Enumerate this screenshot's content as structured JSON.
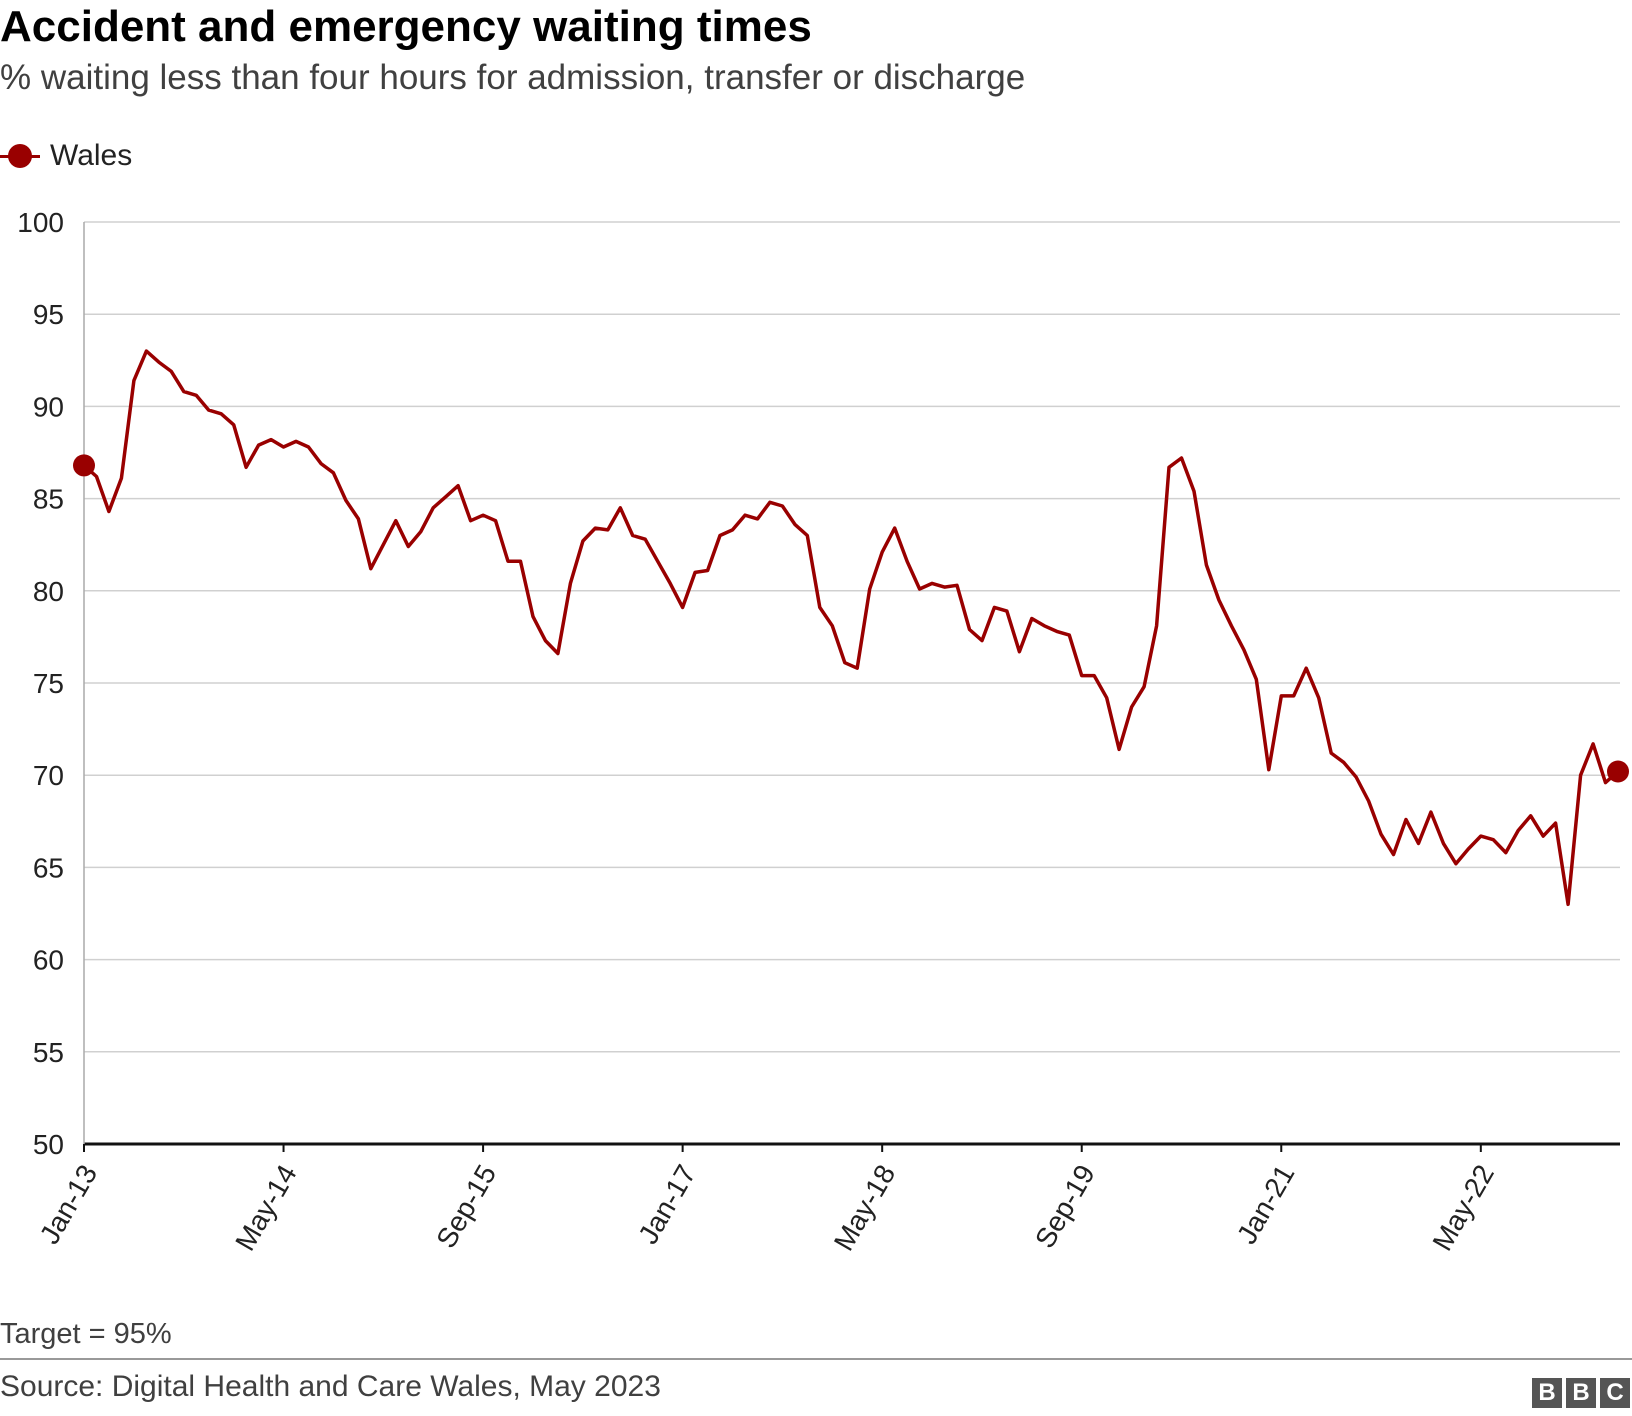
{
  "title": "Accident and emergency waiting times",
  "subtitle": "% waiting less than four hours for admission, transfer or discharge",
  "legend": {
    "label": "Wales",
    "color": "#990000"
  },
  "note": "Target = 95%",
  "source": "Source: Digital Health and Care Wales, May 2023",
  "logo": {
    "letters": [
      "B",
      "B",
      "C"
    ]
  },
  "chart_data": {
    "type": "line",
    "title": "Accident and emergency waiting times",
    "ylabel": "% waiting less than four hours",
    "ylim": [
      50,
      100
    ],
    "yticks": [
      "100",
      "95",
      "90",
      "85",
      "80",
      "75",
      "70",
      "65",
      "60",
      "55",
      "50"
    ],
    "xticks": [
      {
        "label": "Jan-13",
        "index": 0
      },
      {
        "label": "May-14",
        "index": 16
      },
      {
        "label": "Sep-15",
        "index": 32
      },
      {
        "label": "Jan-17",
        "index": 48
      },
      {
        "label": "May-18",
        "index": 64
      },
      {
        "label": "Sep-19",
        "index": 80
      },
      {
        "label": "Jan-21",
        "index": 96
      },
      {
        "label": "May-22",
        "index": 112
      }
    ],
    "grid": true,
    "series": [
      {
        "name": "Wales",
        "start": "Jan-13",
        "frequency": "monthly",
        "values": [
          86.8,
          86.2,
          84.3,
          86.1,
          91.4,
          93.0,
          92.4,
          91.9,
          90.8,
          90.6,
          89.8,
          89.6,
          89.0,
          86.7,
          87.9,
          88.2,
          87.8,
          88.1,
          87.8,
          86.9,
          86.4,
          84.9,
          83.9,
          81.2,
          82.5,
          83.8,
          82.4,
          83.2,
          84.5,
          85.1,
          85.7,
          83.8,
          84.1,
          83.8,
          81.6,
          81.6,
          78.6,
          77.3,
          76.6,
          80.4,
          82.7,
          83.4,
          83.3,
          84.5,
          83.0,
          82.8,
          81.6,
          80.4,
          79.1,
          81.0,
          81.1,
          83.0,
          83.3,
          84.1,
          83.9,
          84.8,
          84.6,
          83.6,
          83.0,
          79.1,
          78.1,
          76.1,
          75.8,
          80.1,
          82.1,
          83.4,
          81.6,
          80.1,
          80.4,
          80.2,
          80.3,
          77.9,
          77.3,
          79.1,
          78.9,
          76.7,
          78.5,
          78.1,
          77.8,
          77.6,
          75.4,
          75.4,
          74.2,
          71.4,
          73.7,
          74.8,
          78.1,
          86.7,
          87.2,
          85.4,
          81.4,
          79.5,
          78.1,
          76.8,
          75.2,
          70.3,
          74.3,
          74.3,
          75.8,
          74.2,
          71.2,
          70.7,
          69.9,
          68.6,
          66.8,
          65.7,
          67.6,
          66.3,
          68.0,
          66.3,
          65.2,
          66.0,
          66.7,
          66.5,
          65.8,
          67.0,
          67.8,
          66.7,
          67.4,
          63.0,
          70.0,
          71.7,
          69.6,
          70.2
        ]
      }
    ]
  }
}
